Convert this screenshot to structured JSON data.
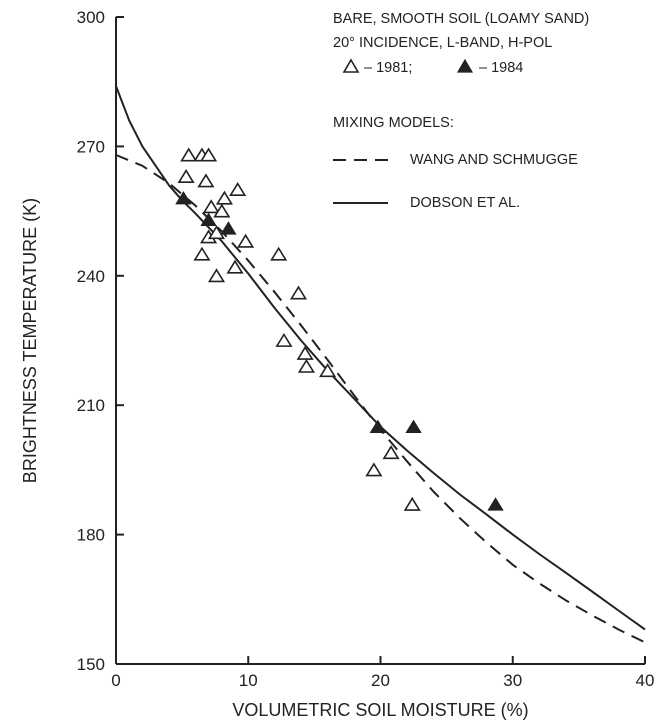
{
  "chart_data": {
    "type": "scatter",
    "xlabel": "VOLUMETRIC SOIL MOISTURE (%)",
    "ylabel": "BRIGHTNESS TEMPERATURE (K)",
    "xlim": [
      0,
      40
    ],
    "ylim": [
      150,
      300
    ],
    "x_ticks": [
      "0",
      "10",
      "20",
      "30",
      "40"
    ],
    "y_ticks": [
      "150",
      "180",
      "210",
      "240",
      "270",
      "300"
    ],
    "grid": false,
    "legend": {
      "placement": "top-right",
      "line1": "BARE, SMOOTH SOIL (LOAMY SAND)",
      "line2": "20° INCIDENCE, L-BAND, H-POL",
      "open_label": "– 1981;",
      "filled_label": "– 1984",
      "models_heading": "MIXING MODELS:",
      "dashed_label": "WANG AND SCHMUGGE",
      "solid_label": "DOBSON ET AL."
    },
    "series": [
      {
        "name": "– 1981;",
        "marker": "open-triangle",
        "points": [
          [
            5.5,
            268
          ],
          [
            6.5,
            268
          ],
          [
            7,
            268
          ],
          [
            5.3,
            263
          ],
          [
            6.8,
            262
          ],
          [
            9.2,
            260
          ],
          [
            8.2,
            258
          ],
          [
            7.2,
            256
          ],
          [
            8,
            255
          ],
          [
            7,
            249
          ],
          [
            7.6,
            250
          ],
          [
            6.5,
            245
          ],
          [
            9.8,
            248
          ],
          [
            12.3,
            245
          ],
          [
            9,
            242
          ],
          [
            7.6,
            240
          ],
          [
            13.8,
            236
          ],
          [
            12.7,
            225
          ],
          [
            14.3,
            222
          ],
          [
            14.4,
            219
          ],
          [
            16,
            218
          ],
          [
            20.8,
            199
          ],
          [
            19.5,
            195
          ],
          [
            22.4,
            187
          ]
        ]
      },
      {
        "name": "– 1984",
        "marker": "filled-triangle",
        "points": [
          [
            5.1,
            258
          ],
          [
            7,
            253
          ],
          [
            8.5,
            251
          ],
          [
            19.8,
            205
          ],
          [
            22.5,
            205
          ],
          [
            28.7,
            187
          ]
        ]
      },
      {
        "name": "WANG AND SCHMUGGE",
        "style": "dashed",
        "points": [
          [
            0,
            268
          ],
          [
            2,
            265.5
          ],
          [
            4,
            261.5
          ],
          [
            6,
            256.3
          ],
          [
            8,
            250.3
          ],
          [
            10,
            243.5
          ],
          [
            12,
            236.2
          ],
          [
            14,
            228.5
          ],
          [
            16,
            220.5
          ],
          [
            18,
            212.3
          ],
          [
            20,
            204.3
          ],
          [
            22,
            197
          ],
          [
            24,
            190
          ],
          [
            26,
            183.8
          ],
          [
            28,
            178.2
          ],
          [
            30,
            173
          ],
          [
            32,
            168.7
          ],
          [
            34,
            164.8
          ],
          [
            36,
            161.3
          ],
          [
            38,
            158
          ],
          [
            40,
            155
          ]
        ]
      },
      {
        "name": "DOBSON ET AL.",
        "style": "solid",
        "points": [
          [
            0,
            284
          ],
          [
            1,
            276
          ],
          [
            2,
            270
          ],
          [
            3,
            265.5
          ],
          [
            4,
            261
          ],
          [
            5,
            257.5
          ],
          [
            6,
            254.5
          ],
          [
            8,
            248
          ],
          [
            10,
            240.5
          ],
          [
            12,
            232.5
          ],
          [
            14,
            225
          ],
          [
            16,
            218
          ],
          [
            18,
            211.5
          ],
          [
            20,
            205
          ],
          [
            22,
            199.5
          ],
          [
            24,
            194.3
          ],
          [
            26,
            189.3
          ],
          [
            28,
            184.7
          ],
          [
            30,
            180
          ],
          [
            32,
            175.5
          ],
          [
            34,
            171.2
          ],
          [
            36,
            166.8
          ],
          [
            38,
            162.4
          ],
          [
            40,
            158
          ]
        ]
      }
    ]
  }
}
